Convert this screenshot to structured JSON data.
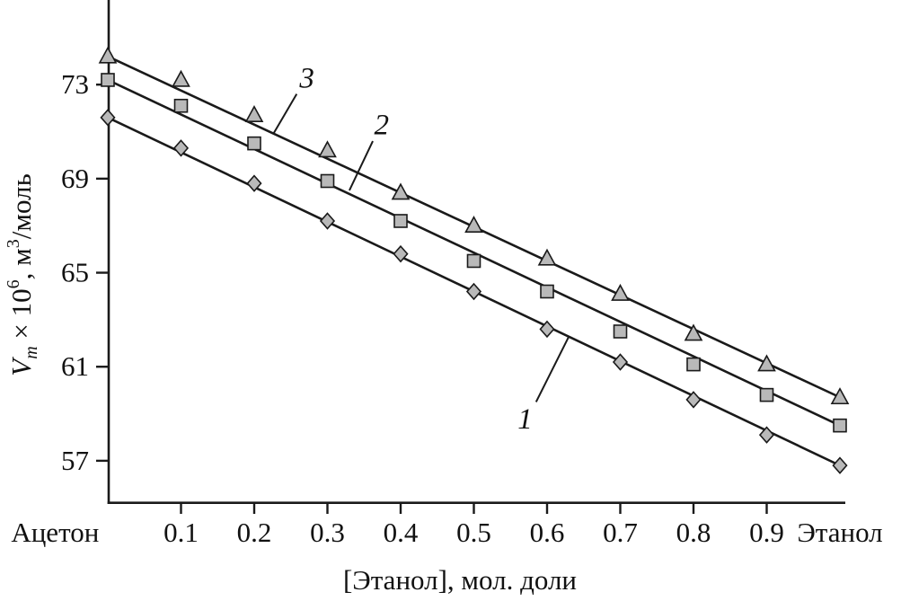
{
  "figure": {
    "background": "#ffffff"
  },
  "chart_data": {
    "type": "line",
    "title": "",
    "xlabel": "[Этанол], мол. доли",
    "ylabel": "Vm × 10^6, м^3/моль",
    "ylabel_parts": [
      {
        "t": "V",
        "s": "i"
      },
      {
        "t": "m",
        "s": "isub"
      },
      {
        "t": " × 10",
        "s": "n"
      },
      {
        "t": "6",
        "s": "sup"
      },
      {
        "t": ", м",
        "s": "n"
      },
      {
        "t": "3",
        "s": "sup"
      },
      {
        "t": "/моль",
        "s": "n"
      }
    ],
    "xlim": [
      0,
      1
    ],
    "ylim": [
      55.2,
      76.6
    ],
    "grid": false,
    "legend": "none",
    "x": [
      0,
      0.1,
      0.2,
      0.3,
      0.4,
      0.5,
      0.6,
      0.7,
      0.8,
      0.9,
      1.0
    ],
    "x_ticks": [
      {
        "label": "Ацетон",
        "x": -0.072,
        "tick": false
      },
      {
        "label": "0.1",
        "x": 0.1,
        "tick": true
      },
      {
        "label": "0.2",
        "x": 0.2,
        "tick": true
      },
      {
        "label": "0.3",
        "x": 0.3,
        "tick": true
      },
      {
        "label": "0.4",
        "x": 0.4,
        "tick": true
      },
      {
        "label": "0.5",
        "x": 0.5,
        "tick": true
      },
      {
        "label": "0.6",
        "x": 0.6,
        "tick": true
      },
      {
        "label": "0.7",
        "x": 0.7,
        "tick": true
      },
      {
        "label": "0.8",
        "x": 0.8,
        "tick": true
      },
      {
        "label": "0.9",
        "x": 0.9,
        "tick": true
      },
      {
        "label": "Этанол",
        "x": 1.0,
        "tick": false
      }
    ],
    "y_ticks": [
      57,
      61,
      65,
      69,
      73
    ],
    "series": [
      {
        "name": "1",
        "marker": "diamond",
        "values": [
          71.6,
          70.3,
          68.8,
          67.2,
          65.8,
          64.2,
          62.6,
          61.2,
          59.6,
          58.1,
          56.8
        ]
      },
      {
        "name": "2",
        "marker": "square",
        "values": [
          73.2,
          72.1,
          70.5,
          68.9,
          67.2,
          65.5,
          64.2,
          62.5,
          61.1,
          59.8,
          58.5
        ]
      },
      {
        "name": "3",
        "marker": "triangle",
        "values": [
          74.2,
          73.2,
          71.7,
          70.2,
          68.4,
          67.0,
          65.6,
          64.1,
          62.4,
          61.1,
          59.7
        ]
      }
    ],
    "annotations": [
      {
        "text": "1",
        "label_x": 0.57,
        "label_y": 58.8,
        "x1": 0.585,
        "y1": 59.5,
        "x2": 0.63,
        "y2": 62.3
      },
      {
        "text": "2",
        "label_x": 0.374,
        "label_y": 71.3,
        "x1": 0.362,
        "y1": 70.6,
        "x2": 0.33,
        "y2": 68.5
      },
      {
        "text": "3",
        "label_x": 0.272,
        "label_y": 73.3,
        "x1": 0.258,
        "y1": 72.6,
        "x2": 0.226,
        "y2": 70.9
      }
    ],
    "colors": {
      "line": "#1a1a1a",
      "marker_fill": "#b9b9b9",
      "marker_stroke": "#1a1a1a",
      "text": "#111111"
    }
  }
}
